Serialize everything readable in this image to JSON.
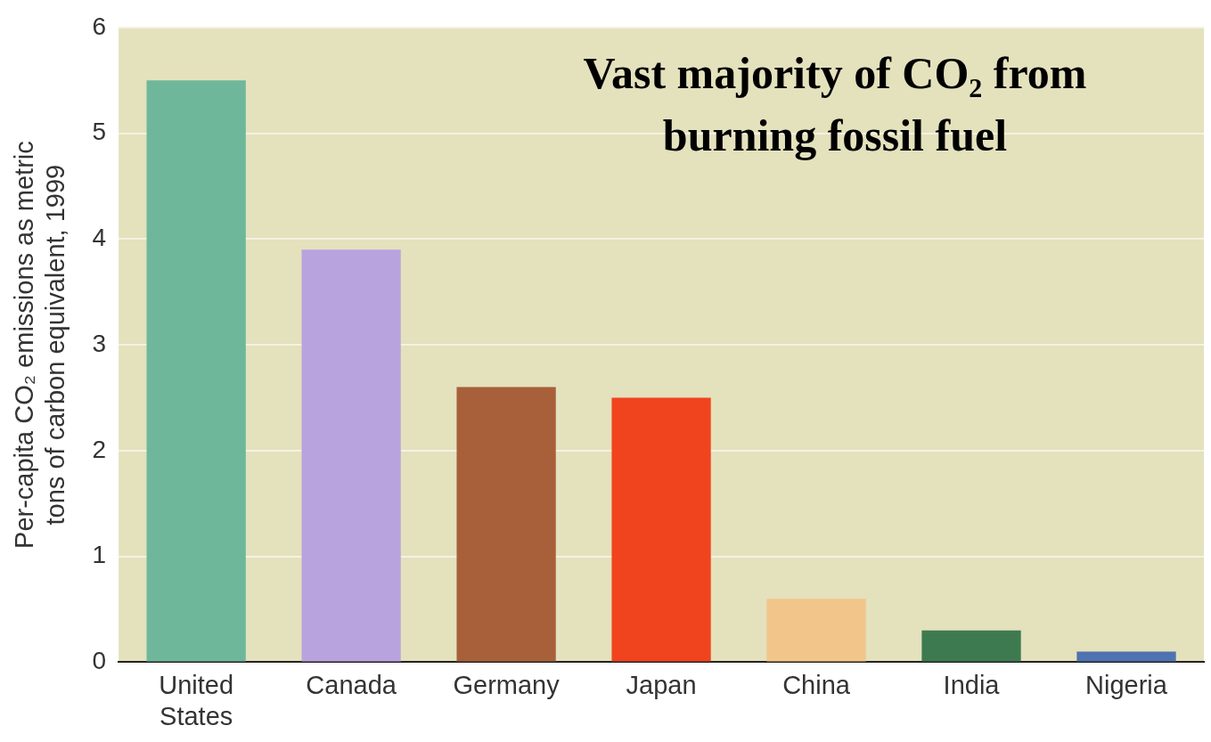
{
  "chart_data": {
    "type": "bar",
    "title": "Vast majority of CO₂ from\nburning fossil fuel",
    "ylabel": "Per-capita CO₂ emissions as metric\ntons of carbon equivalent, 1999",
    "categories": [
      "United\nStates",
      "Canada",
      "Germany",
      "Japan",
      "China",
      "India",
      "Nigeria"
    ],
    "values": [
      5.5,
      3.9,
      2.6,
      2.5,
      0.6,
      0.3,
      0.1
    ],
    "colors": [
      "#6fb79a",
      "#b9a3de",
      "#a8603a",
      "#f0441e",
      "#f2c58a",
      "#3e7a50",
      "#4f73b0"
    ],
    "ylim": [
      0,
      6
    ],
    "yticks": [
      0,
      1,
      2,
      3,
      4,
      5,
      6
    ],
    "grid": "y",
    "legend": false
  }
}
